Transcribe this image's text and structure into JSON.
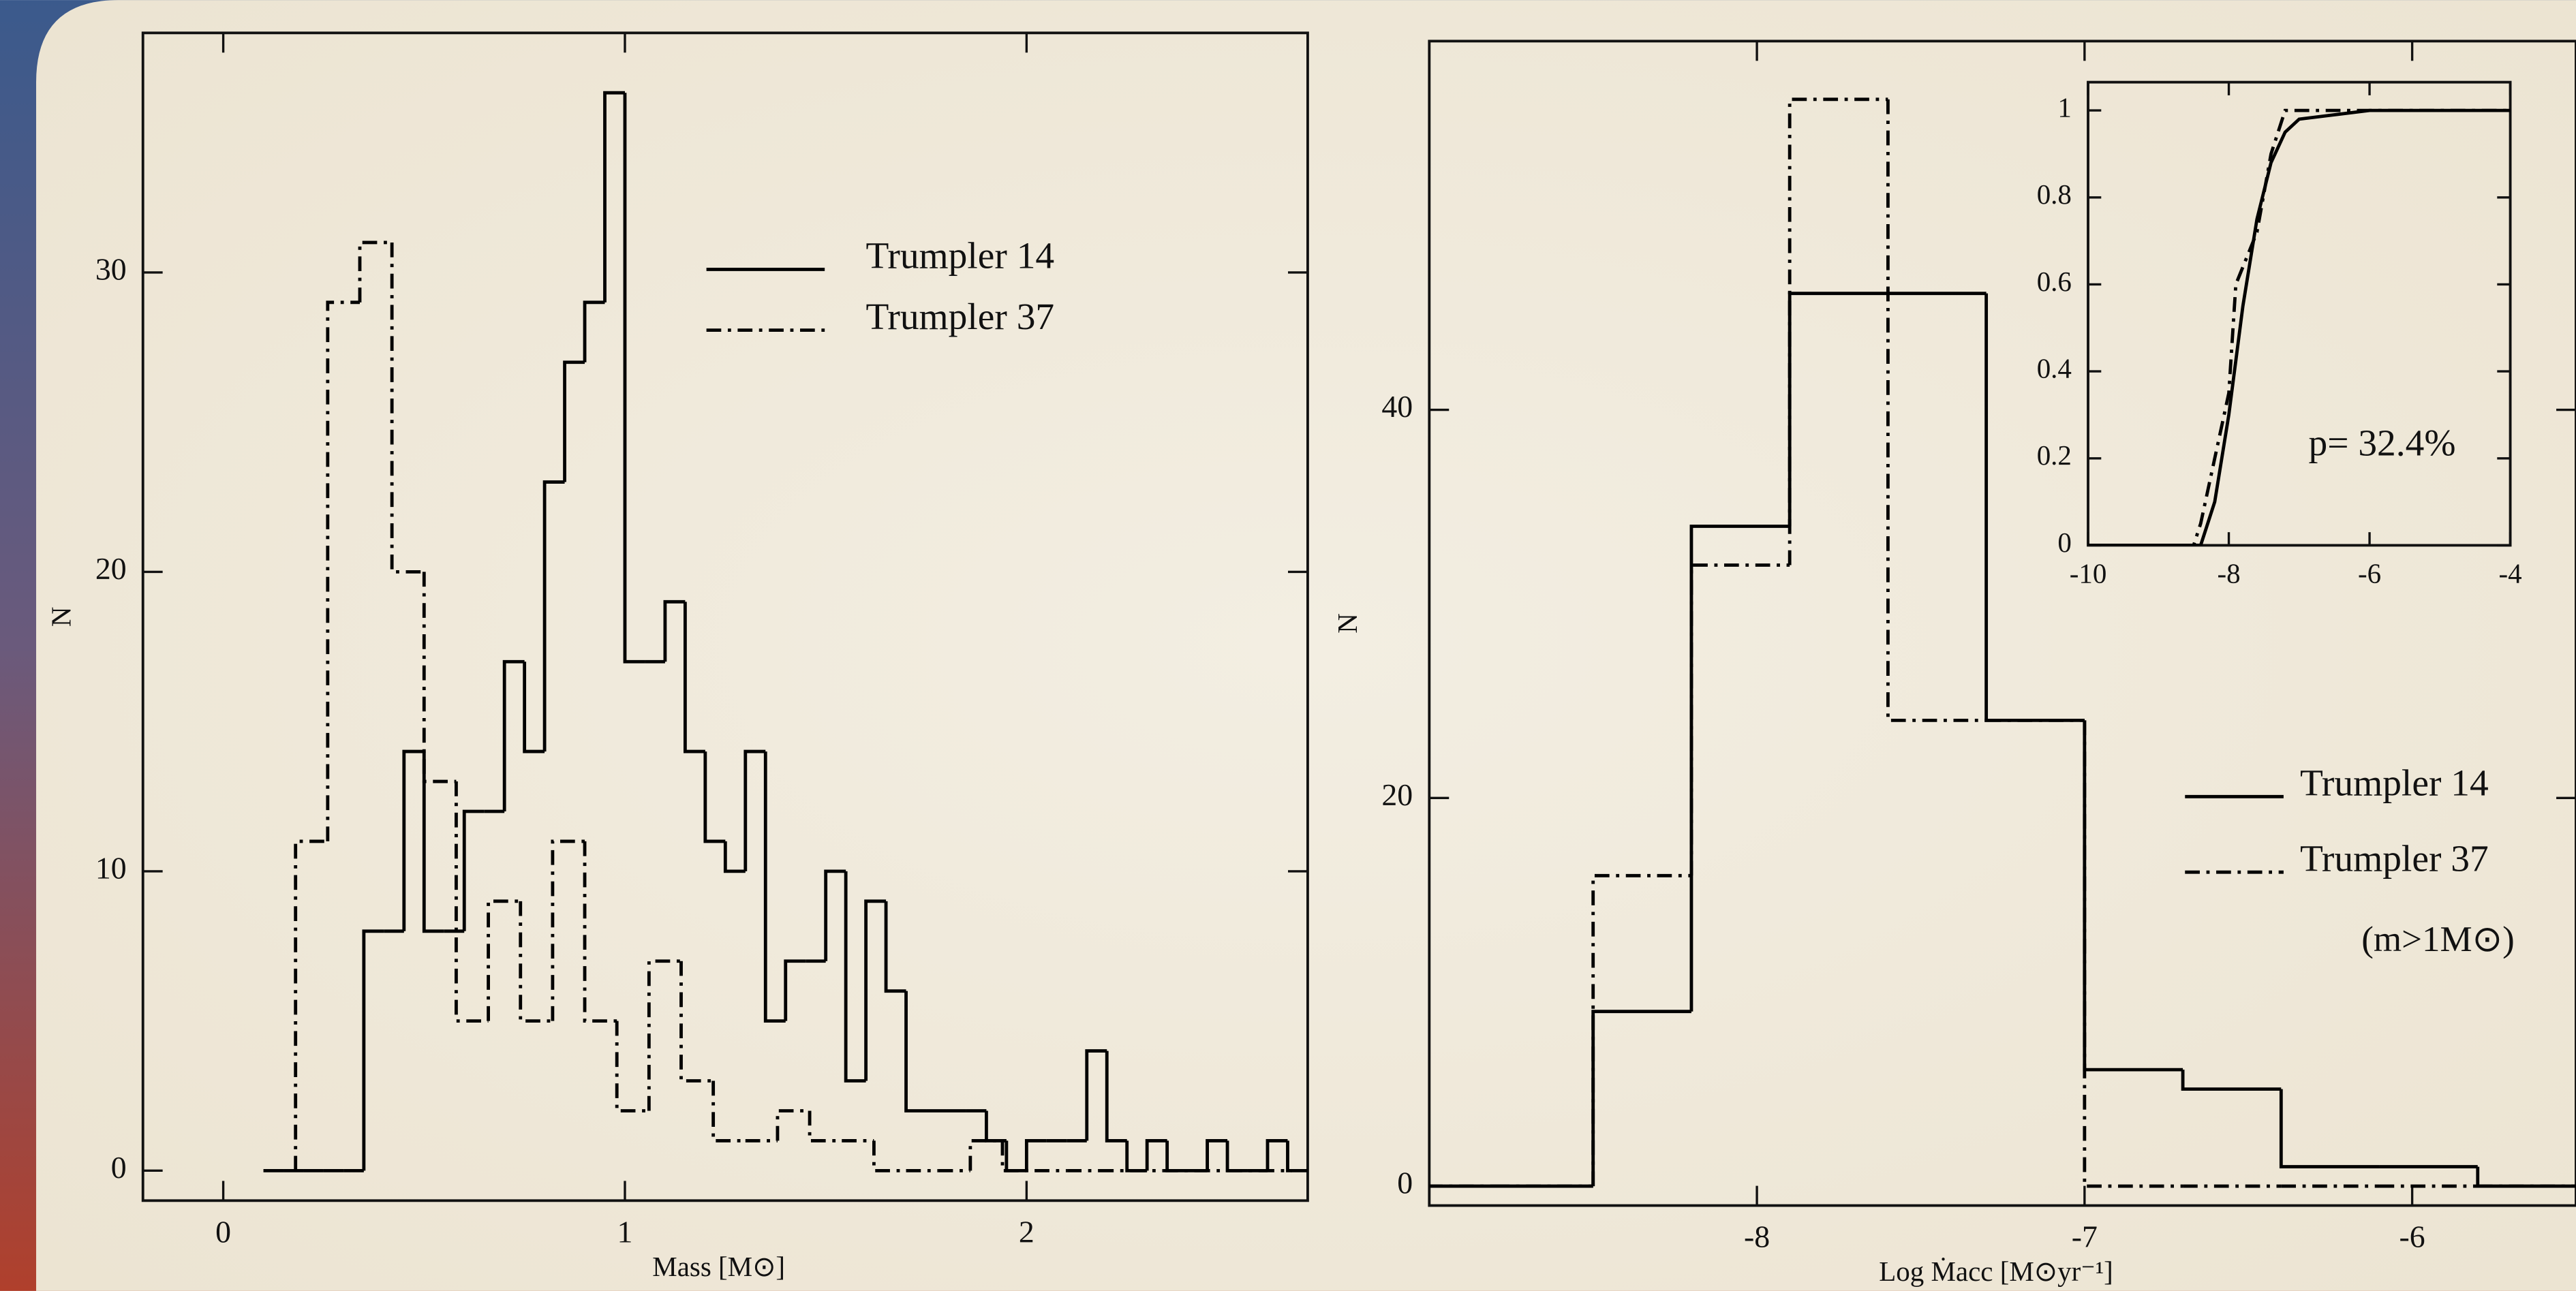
{
  "chart_data": [
    {
      "type": "histogram",
      "x_label": "Mass [M⊙]",
      "y_label": "N",
      "xlim": [
        -0.2,
        2.7
      ],
      "ylim": [
        -1,
        38
      ],
      "xticks": [
        0,
        1,
        2
      ],
      "yticks": [
        0,
        10,
        20,
        30
      ],
      "legend": "upper center",
      "series": [
        {
          "name": "Trumpler 14",
          "color": "#000000",
          "line_style": "solid",
          "bins": [
            0.1,
            0.15,
            0.2,
            0.25,
            0.3,
            0.35,
            0.4,
            0.45,
            0.5,
            0.55,
            0.6,
            0.65,
            0.7,
            0.75,
            0.8,
            0.85,
            0.9,
            0.95,
            1.0,
            1.05,
            1.1,
            1.15,
            1.2,
            1.25,
            1.3,
            1.35,
            1.4,
            1.45,
            1.5,
            1.55,
            1.6,
            1.65,
            1.7,
            1.75,
            1.8,
            1.85,
            1.9,
            1.95,
            2.0,
            2.05,
            2.1,
            2.15,
            2.2,
            2.25,
            2.3,
            2.35,
            2.4,
            2.45,
            2.5,
            2.55,
            2.6,
            2.65,
            2.7
          ],
          "values": [
            0,
            0,
            0,
            0,
            0,
            8,
            8,
            14,
            8,
            8,
            12,
            12,
            17,
            14,
            23,
            27,
            29,
            36,
            17,
            17,
            19,
            14,
            11,
            10,
            14,
            5,
            7,
            7,
            10,
            3,
            9,
            6,
            2,
            2,
            2,
            2,
            1,
            0,
            1,
            1,
            1,
            4,
            1,
            0,
            1,
            0,
            0,
            1,
            0,
            0,
            1,
            0
          ]
        },
        {
          "name": "Trumpler 37",
          "color": "#000000",
          "line_style": "dashdot",
          "bins": [
            0.18,
            0.26,
            0.34,
            0.42,
            0.5,
            0.58,
            0.66,
            0.74,
            0.82,
            0.9,
            0.98,
            1.06,
            1.14,
            1.22,
            1.3,
            1.38,
            1.46,
            1.54,
            1.62,
            1.7,
            1.78,
            1.86,
            1.94,
            2.02,
            2.1,
            2.18,
            2.26,
            2.34,
            2.42,
            2.5,
            2.58,
            2.66
          ],
          "values": [
            11,
            29,
            31,
            20,
            13,
            5,
            9,
            5,
            11,
            5,
            2,
            7,
            3,
            1,
            1,
            2,
            1,
            1,
            0,
            0,
            0,
            1,
            0,
            0,
            0,
            0,
            0,
            0,
            0,
            0,
            0
          ]
        }
      ]
    },
    {
      "type": "histogram",
      "x_label": "Log Ṁacc [M⊙yr⁻¹]",
      "y_label": "N",
      "xlim": [
        -9,
        -5.5
      ],
      "ylim": [
        -1,
        59
      ],
      "xticks": [
        -8,
        -7,
        -6
      ],
      "yticks": [
        0,
        20,
        40
      ],
      "legend": "lower right",
      "note": "(m>1M⊙)",
      "series": [
        {
          "name": "Trumpler 14",
          "color": "#000000",
          "line_style": "solid",
          "bins": [
            -9.1,
            -8.8,
            -8.5,
            -8.2,
            -7.9,
            -7.6,
            -7.3,
            -7,
            -6.7,
            -6.4,
            -6.1,
            -5.8,
            -5.5
          ],
          "values": [
            0,
            0,
            9,
            34,
            46,
            46,
            24,
            6,
            5,
            1,
            1,
            0
          ]
        },
        {
          "name": "Trumpler 37",
          "color": "#000000",
          "line_style": "dashdot",
          "bins": [
            -9.1,
            -8.8,
            -8.5,
            -8.2,
            -7.9,
            -7.6,
            -7.3,
            -7,
            -6.7,
            -6.4,
            -6.1,
            -5.8,
            -5.5
          ],
          "values": [
            0,
            0,
            16,
            32,
            56,
            24,
            24,
            0,
            0,
            0,
            0,
            0
          ]
        }
      ]
    },
    {
      "type": "line",
      "xlim": [
        -10,
        -4
      ],
      "ylim": [
        0,
        1.065
      ],
      "xticks": [
        -10,
        -8,
        -6,
        -4
      ],
      "yticks": [
        0,
        0.2,
        0.4,
        0.6,
        0.8,
        1
      ],
      "annotation": "p= 32.4%",
      "series": [
        {
          "color": "#000000",
          "line_style": "solid",
          "x": [
            -10,
            -8.4,
            -8.2,
            -8.0,
            -7.8,
            -7.6,
            -7.4,
            -7.2,
            -7.0,
            -6.5,
            -6,
            -4
          ],
          "values": [
            0,
            0,
            0.1,
            0.3,
            0.55,
            0.75,
            0.88,
            0.95,
            0.98,
            0.99,
            1,
            1
          ]
        },
        {
          "color": "#000000",
          "line_style": "dashdot",
          "x": [
            -10,
            -8.5,
            -8.4,
            -8.2,
            -8.0,
            -7.9,
            -7.6,
            -7.4,
            -7.2,
            -4
          ],
          "values": [
            0,
            0,
            0.05,
            0.2,
            0.35,
            0.6,
            0.72,
            0.9,
            1,
            1
          ]
        }
      ]
    }
  ]
}
